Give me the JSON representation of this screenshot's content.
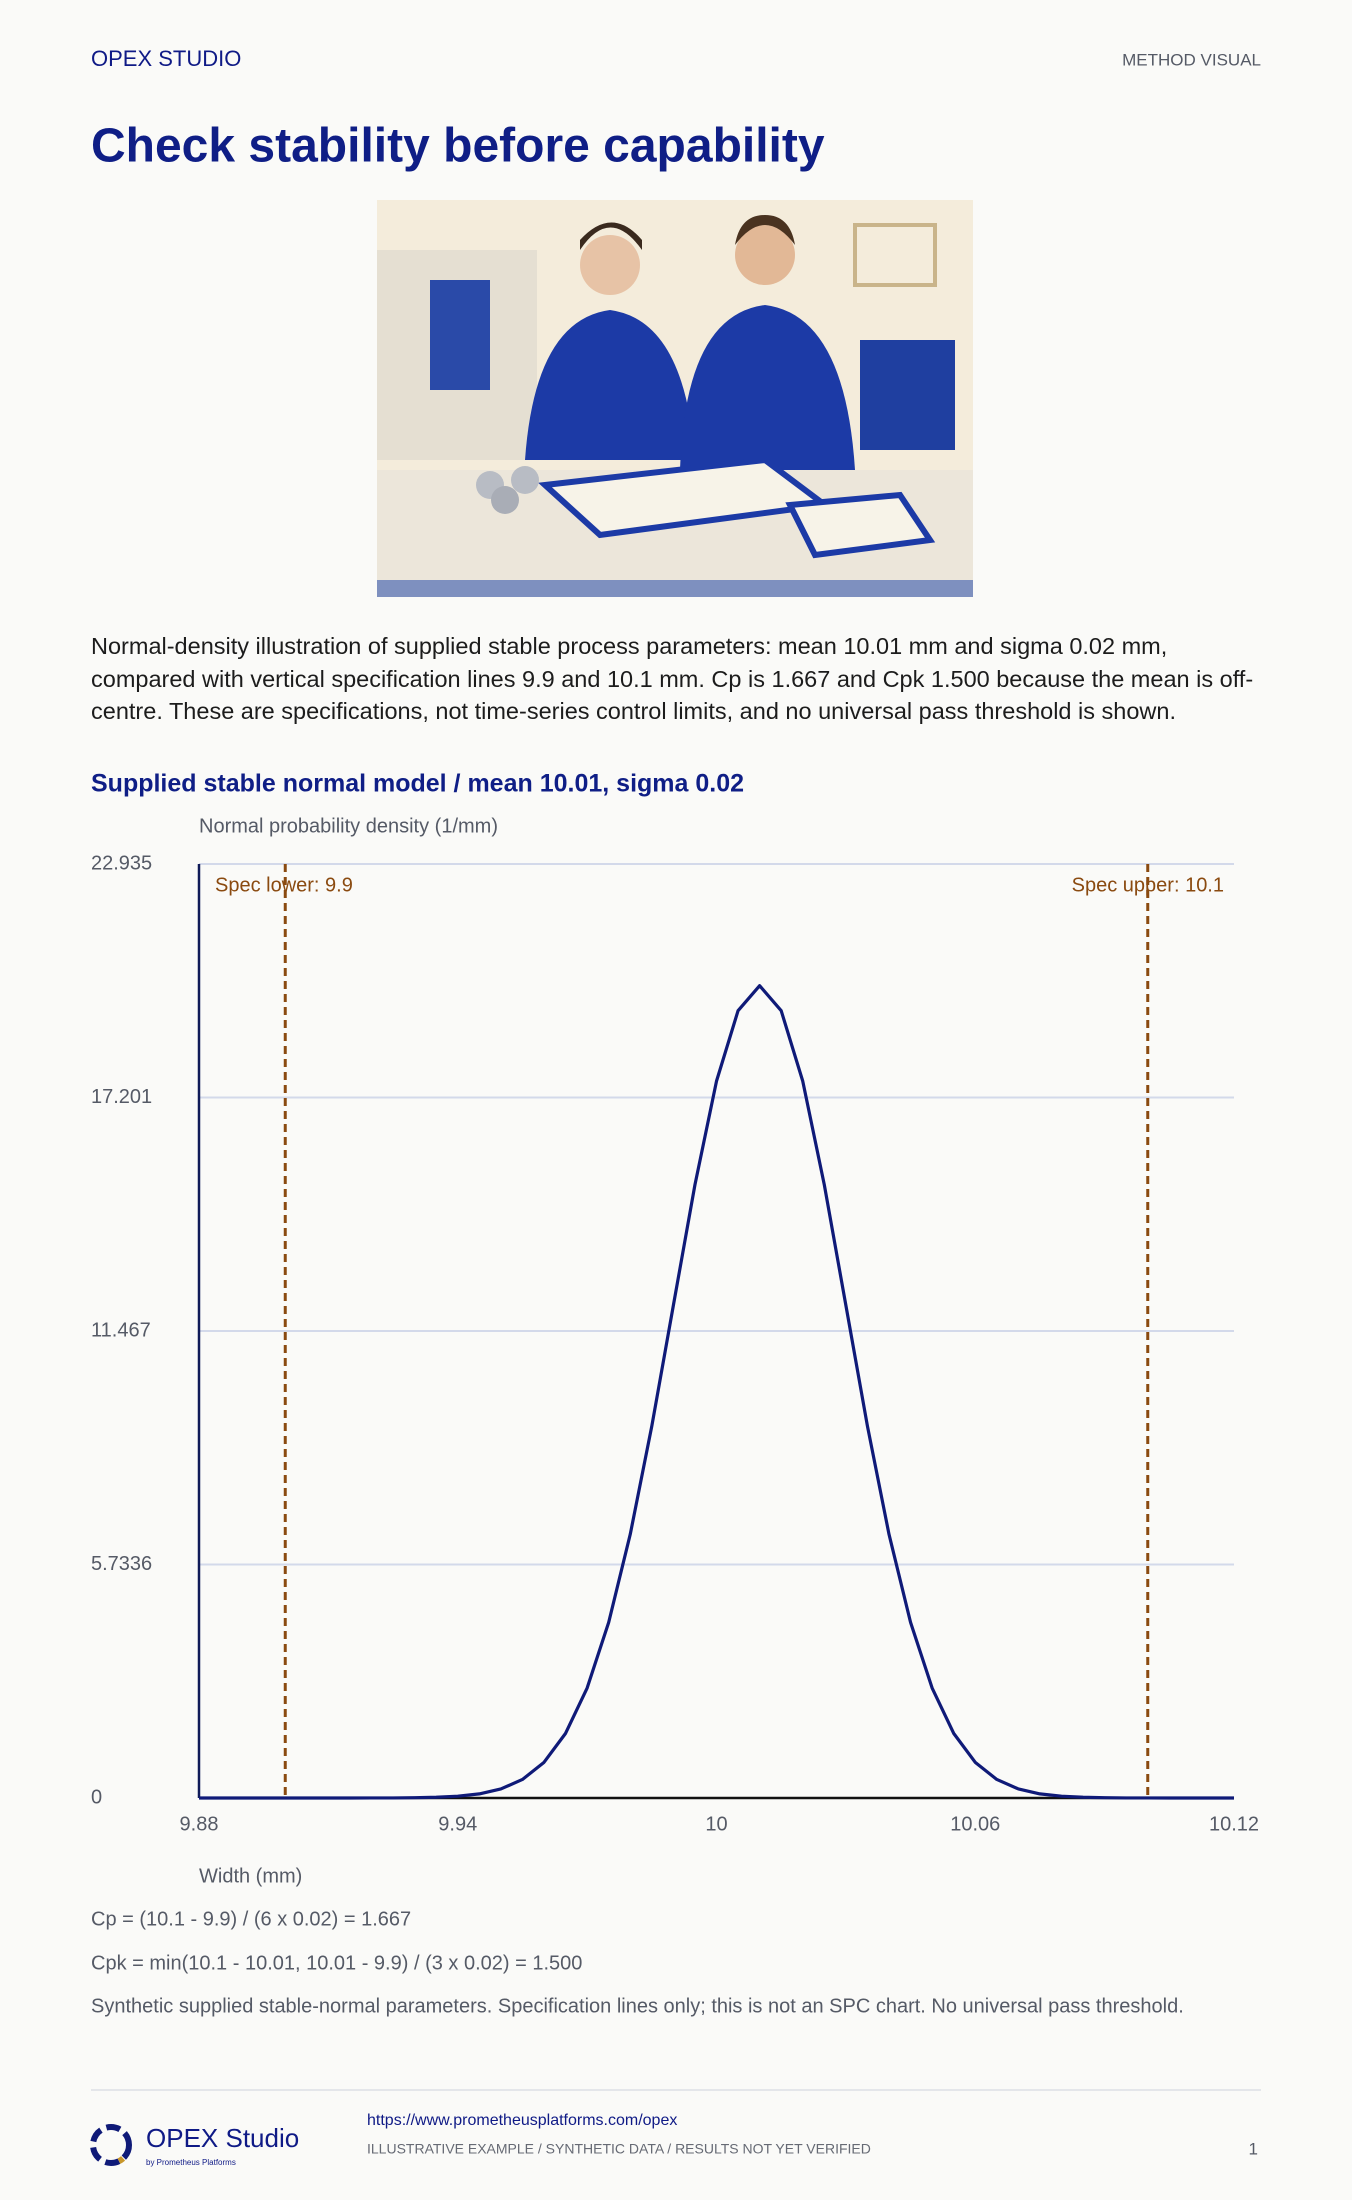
{
  "header": {
    "brand": "OPEX STUDIO",
    "label": "METHOD VISUAL"
  },
  "title": "Check stability before capability",
  "intro": "Normal-density illustration of supplied stable process parameters: mean 10.01 mm and sigma 0.02 mm, compared with vertical specification lines 9.9 and 10.1 mm. Cp is 1.667 and Cpk 1.500 because the mean is off-centre. These are specifications, not time-series control limits, and no universal pass threshold is shown.",
  "chart_data": {
    "type": "line",
    "title": "Supplied stable normal model / mean 10.01, sigma 0.02",
    "y_label": "Normal probability density (1/mm)",
    "x_label": "Width (mm)",
    "color": "#0f1a78",
    "x": [
      9.88,
      9.885,
      9.89,
      9.895,
      9.9,
      9.905,
      9.91,
      9.915,
      9.92,
      9.925,
      9.93,
      9.935,
      9.94,
      9.945,
      9.95,
      9.955,
      9.96,
      9.965,
      9.97,
      9.975,
      9.98,
      9.985,
      9.99,
      9.995,
      10,
      10.005,
      10.01,
      10.015,
      10.02,
      10.025,
      10.03,
      10.035,
      10.04,
      10.045,
      10.05,
      10.055,
      10.06,
      10.065,
      10.07,
      10.075,
      10.08,
      10.085,
      10.09,
      10.095,
      10.1,
      10.105,
      10.11,
      10.115,
      10.12
    ],
    "values": [
      0,
      0,
      0,
      0,
      0,
      0,
      0,
      0,
      0.001,
      0.002,
      0.007,
      0.018,
      0.044,
      0.101,
      0.222,
      0.455,
      0.876,
      1.587,
      2.7,
      4.314,
      6.476,
      9.132,
      12.098,
      15.057,
      17.603,
      19.333,
      19.947,
      19.333,
      17.603,
      15.057,
      12.098,
      9.132,
      6.476,
      4.314,
      2.7,
      1.587,
      0.876,
      0.455,
      0.222,
      0.101,
      0.044,
      0.018,
      0.007,
      0.002,
      0.001,
      0,
      0,
      0,
      0
    ],
    "xlim": [
      9.88,
      10.12
    ],
    "xticks": [
      9.88,
      9.94,
      10,
      10.06,
      10.12
    ],
    "ylim": [
      0,
      22.935
    ],
    "yticks": [
      0,
      5.7336,
      11.467,
      17.201,
      22.935
    ],
    "grid": true,
    "spec_lines": [
      {
        "value": 9.9,
        "label": "Spec lower: 9.9"
      },
      {
        "value": 10.1,
        "label": "Spec upper: 10.1"
      }
    ],
    "spec_color": "#8a4a10"
  },
  "notes": [
    "Cp = (10.1 - 9.9) / (6 x 0.02) = 1.667",
    "Cpk = min(10.1 - 10.01, 10.01 - 9.9) / (3 x 0.02) = 1.500",
    "Synthetic supplied stable-normal parameters. Specification lines only; this is not an SPC chart. No universal pass threshold."
  ],
  "footer": {
    "logo": "OPEX Studio",
    "logo_sub": "by Prometheus Platforms",
    "url": "https://www.prometheusplatforms.com/opex",
    "disclaimer": "ILLUSTRATIVE EXAMPLE / SYNTHETIC DATA / RESULTS NOT YET VERIFIED",
    "page": "1"
  }
}
